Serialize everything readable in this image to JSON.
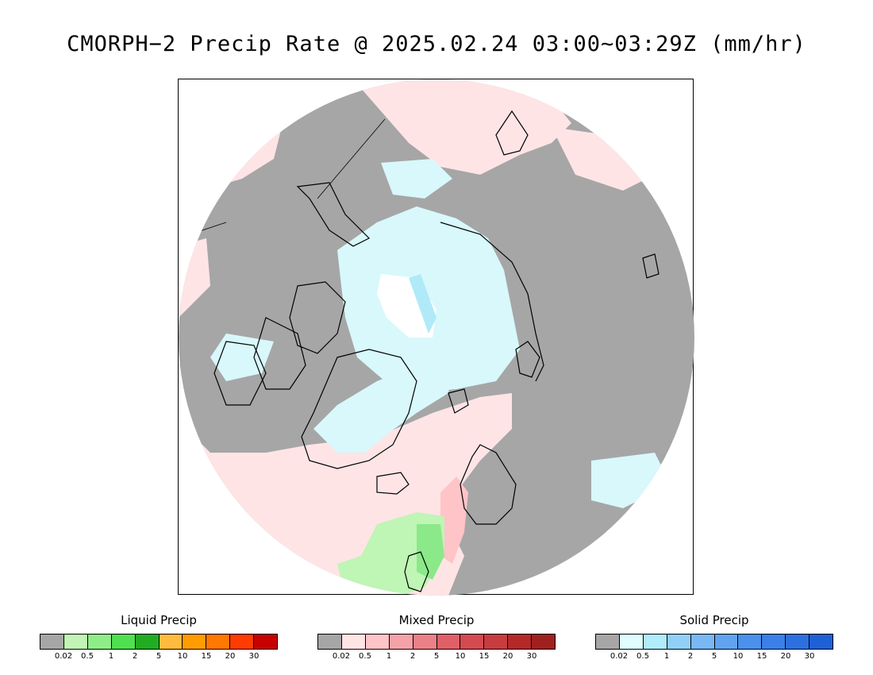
{
  "title": "CMORPH−2 Precip Rate @ 2025.02.24 03:00~03:29Z (mm/hr)",
  "map": {
    "projection": "polar-stereographic-north",
    "colors": {
      "no_precip": "#a6a6a6",
      "mixed_light": "#ffe4e6",
      "solid_light": "#d8f8fc",
      "solid_mid": "#b0eaf8",
      "liquid_light": "#bff5b5",
      "liquid_mid": "#8be98a",
      "coast": "#000000"
    }
  },
  "legends": [
    {
      "title": "Liquid Precip",
      "colors": [
        "#a6a6a6",
        "#c2f5b5",
        "#8fed88",
        "#4fe04f",
        "#22ac22",
        "#ffbb3f",
        "#ff9c00",
        "#ff7800",
        "#ff3c00",
        "#c80000"
      ],
      "ticks": [
        "0.02",
        "0.5",
        "1",
        "2",
        "5",
        "10",
        "15",
        "20",
        "30"
      ]
    },
    {
      "title": "Mixed Precip",
      "colors": [
        "#a6a6a6",
        "#ffe4e6",
        "#ffc4c8",
        "#f4a2a8",
        "#ec8088",
        "#e06068",
        "#d44a50",
        "#c83c40",
        "#b42828",
        "#a02020"
      ],
      "ticks": [
        "0.02",
        "0.5",
        "1",
        "2",
        "5",
        "10",
        "15",
        "20",
        "30"
      ]
    },
    {
      "title": "Solid Precip",
      "colors": [
        "#a6a6a6",
        "#e0fcfe",
        "#b0ecfa",
        "#90d0f8",
        "#78b8f4",
        "#60a4f0",
        "#4a90ec",
        "#3a80e8",
        "#2c70e0",
        "#1e60d8"
      ],
      "ticks": [
        "0.02",
        "0.5",
        "1",
        "2",
        "5",
        "10",
        "15",
        "20",
        "30"
      ]
    }
  ]
}
